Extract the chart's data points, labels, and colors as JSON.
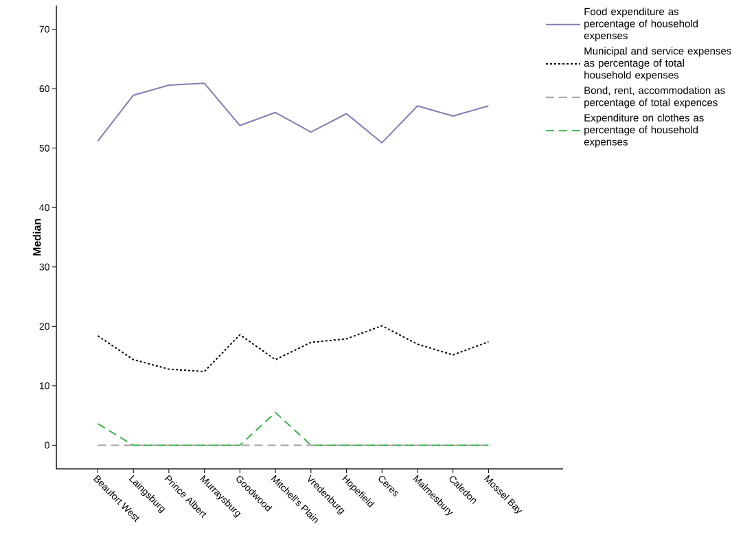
{
  "chart_data": {
    "type": "line",
    "ylabel": "Median",
    "categories": [
      "Beaufort West",
      "Laingsburg",
      "Prince Albert",
      "Murraysburg",
      "Goodwood",
      "Mitchell's Plain",
      "Vredenburg",
      "Hopefield",
      "Ceres",
      "Malmesbury",
      "Caledon",
      "Mossel Bay"
    ],
    "series": [
      {
        "name": "Food expenditure as percentage of household expenses",
        "color": "#7f7fb3",
        "line_style": "solid",
        "values": [
          51.2,
          58.9,
          60.6,
          60.9,
          53.8,
          56.0,
          52.7,
          55.8,
          50.9,
          57.1,
          55.4,
          57.1
        ]
      },
      {
        "name": "Municipal and service expenses as percentage of total household expenses",
        "color": "#000000",
        "line_style": "dotted",
        "values": [
          18.4,
          14.4,
          12.8,
          12.4,
          18.6,
          14.4,
          17.3,
          17.9,
          20.1,
          17.0,
          15.2,
          17.4
        ]
      },
      {
        "name": "Bond, rent, accommodation as percentage of total expences",
        "color": "#a0a0a0",
        "line_style": "dashed",
        "values": [
          0,
          0,
          0,
          0,
          0,
          0,
          0,
          0,
          0,
          0,
          0,
          0
        ]
      },
      {
        "name": "Expenditure on clothes as percentage of household expenses",
        "color": "#3cb44b",
        "line_style": "dashed",
        "values": [
          3.6,
          0,
          0,
          0,
          0,
          5.5,
          0,
          0,
          0,
          0,
          0,
          0
        ]
      }
    ],
    "ylim": [
      -4,
      74
    ],
    "yticks": [
      0,
      10,
      20,
      30,
      40,
      50,
      60,
      70
    ],
    "grid": false,
    "legend": "right"
  }
}
